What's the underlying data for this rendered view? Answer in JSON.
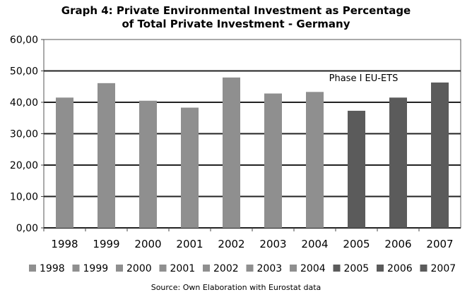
{
  "chart_data": {
    "type": "bar",
    "title_lines": [
      "Graph 4: Private Environmental Investment as Percentage",
      "of Total Private Investment - Germany"
    ],
    "categories": [
      "1998",
      "1999",
      "2000",
      "2001",
      "2002",
      "2003",
      "2004",
      "2005",
      "2006",
      "2007"
    ],
    "values": [
      41.5,
      46.1,
      40.5,
      38.3,
      47.9,
      42.8,
      43.3,
      37.3,
      41.5,
      46.3
    ],
    "y_tick_labels": [
      "0,00",
      "10,00",
      "20,00",
      "30,00",
      "40,00",
      "50,00",
      "60,00"
    ],
    "ylim": [
      0,
      60
    ],
    "y_step": 10,
    "gridlines": true,
    "annotation": "Phase I EU-ETS",
    "phase_start_index": 7,
    "colors": {
      "pre_phase": "#8f8f8f",
      "phase": "#5b5b5b"
    },
    "legend_position": "bottom",
    "source": "Source: Own Elaboration with Eurostat data"
  }
}
